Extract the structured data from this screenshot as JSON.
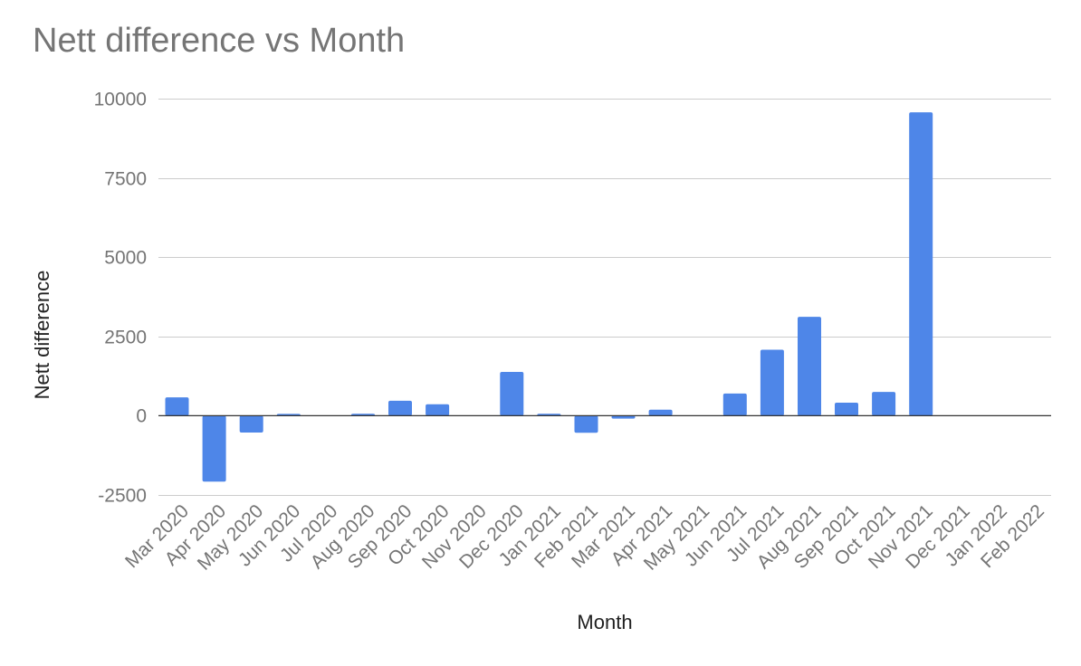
{
  "chart_data": {
    "type": "bar",
    "title": "Nett difference vs Month",
    "xlabel": "Month",
    "ylabel": "Nett difference",
    "ylim": [
      -2500,
      10000
    ],
    "yticks": [
      10000,
      7500,
      5000,
      2500,
      0,
      -2500
    ],
    "grid": true,
    "legend": "none",
    "bar_color": "#4e86e8",
    "categories": [
      "Mar 2020",
      "Apr 2020",
      "May 2020",
      "Jun 2020",
      "Jul 2020",
      "Aug 2020",
      "Sep 2020",
      "Oct 2020",
      "Nov 2020",
      "Dec 2020",
      "Jan 2021",
      "Feb 2021",
      "Mar 2021",
      "Apr 2021",
      "May 2021",
      "Jun 2021",
      "Jul 2021",
      "Aug 2021",
      "Sep 2021",
      "Oct 2021",
      "Nov 2021",
      "Dec 2021",
      "Jan 2022",
      "Feb 2022"
    ],
    "values": [
      580,
      -2080,
      -530,
      20,
      0,
      60,
      470,
      360,
      0,
      1380,
      60,
      -540,
      -90,
      190,
      0,
      700,
      2080,
      3120,
      410,
      750,
      9570,
      0,
      0,
      0
    ]
  }
}
